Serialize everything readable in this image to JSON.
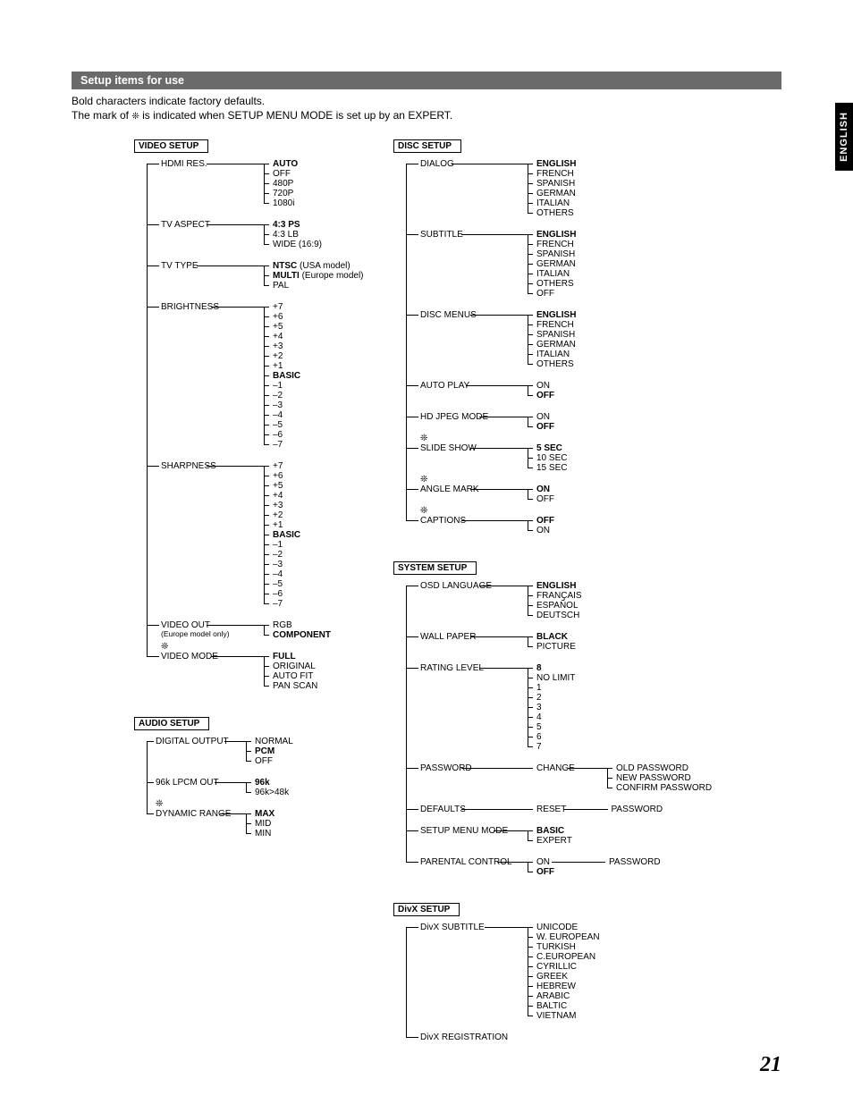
{
  "side_tab": "ENGLISH",
  "page_number": "21",
  "header": "Setup items for use",
  "intro_line1": "Bold characters indicate factory defaults.",
  "intro_line2_prefix": "The mark of ",
  "intro_line2_glyph": "❊",
  "intro_line2_suffix": " is indicated when SETUP MENU MODE is set up by an EXPERT.",
  "expert_glyph": "❊",
  "video_setup": {
    "title": "VIDEO SETUP",
    "hdmi_res": {
      "label": "HDMI RES.",
      "opts": [
        "AUTO",
        "OFF",
        "480P",
        "720P",
        "1080i"
      ],
      "bold": [
        0
      ]
    },
    "tv_aspect": {
      "label": "TV ASPECT",
      "opts": [
        "4:3 PS",
        "4:3 LB",
        "WIDE (16:9)"
      ],
      "bold": [
        0
      ]
    },
    "tv_type": {
      "label": "TV TYPE",
      "opts": [
        "NTSC",
        "MULTI",
        "PAL"
      ],
      "suffix": [
        " (USA model)",
        " (Europe model)",
        ""
      ],
      "bold": [
        0,
        1
      ]
    },
    "brightness": {
      "label": "BRIGHTNESS",
      "opts": [
        "+7",
        "+6",
        "+5",
        "+4",
        "+3",
        "+2",
        "+1",
        "BASIC",
        "–1",
        "–2",
        "–3",
        "–4",
        "–5",
        "–6",
        "–7"
      ],
      "bold": [
        7
      ]
    },
    "sharpness": {
      "label": "SHARPNESS",
      "opts": [
        "+7",
        "+6",
        "+5",
        "+4",
        "+3",
        "+2",
        "+1",
        "BASIC",
        "–1",
        "–2",
        "–3",
        "–4",
        "–5",
        "–6",
        "–7"
      ],
      "bold": [
        7
      ]
    },
    "video_out": {
      "label": "VIDEO OUT",
      "note": "(Europe model only)",
      "opts": [
        "RGB",
        "COMPONENT"
      ],
      "bold": [
        1
      ]
    },
    "video_mode": {
      "label": "VIDEO MODE",
      "expert": true,
      "opts": [
        "FULL",
        "ORIGINAL",
        "AUTO FIT",
        "PAN SCAN"
      ],
      "bold": [
        0
      ]
    }
  },
  "audio_setup": {
    "title": "AUDIO SETUP",
    "digital_output": {
      "label": "DIGITAL OUTPUT",
      "opts": [
        "NORMAL",
        "PCM",
        "OFF"
      ],
      "bold": [
        1
      ]
    },
    "lpcm_out": {
      "label": "96k LPCM OUT",
      "opts": [
        "96k",
        "96k>48k"
      ],
      "bold": [
        0
      ]
    },
    "dynamic_range": {
      "label": "DYNAMIC RANGE",
      "expert": true,
      "opts": [
        "MAX",
        "MID",
        "MIN"
      ],
      "bold": [
        0
      ]
    }
  },
  "disc_setup": {
    "title": "DISC SETUP",
    "dialog": {
      "label": "DIALOG",
      "opts": [
        "ENGLISH",
        "FRENCH",
        "SPANISH",
        "GERMAN",
        "ITALIAN",
        "OTHERS"
      ],
      "bold": [
        0
      ]
    },
    "subtitle": {
      "label": "SUBTITLE",
      "opts": [
        "ENGLISH",
        "FRENCH",
        "SPANISH",
        "GERMAN",
        "ITALIAN",
        "OTHERS",
        "OFF"
      ],
      "bold": [
        0
      ]
    },
    "disc_menus": {
      "label": "DISC MENUS",
      "opts": [
        "ENGLISH",
        "FRENCH",
        "SPANISH",
        "GERMAN",
        "ITALIAN",
        "OTHERS"
      ],
      "bold": [
        0
      ]
    },
    "auto_play": {
      "label": "AUTO PLAY",
      "opts": [
        "ON",
        "OFF"
      ],
      "bold": [
        1
      ]
    },
    "hd_jpeg": {
      "label": "HD JPEG MODE",
      "opts": [
        "ON",
        "OFF"
      ],
      "bold": [
        1
      ]
    },
    "slide_show": {
      "label": "SLIDE SHOW",
      "expert": true,
      "opts": [
        "5 SEC",
        "10 SEC",
        "15 SEC"
      ],
      "bold": [
        0
      ]
    },
    "angle_mark": {
      "label": "ANGLE MARK",
      "expert": true,
      "opts": [
        "ON",
        "OFF"
      ],
      "bold": [
        0
      ]
    },
    "captions": {
      "label": "CAPTIONS",
      "expert": true,
      "opts": [
        "OFF",
        "ON"
      ],
      "bold": [
        0
      ]
    }
  },
  "system_setup": {
    "title": "SYSTEM SETUP",
    "osd_language": {
      "label": "OSD LANGUAGE",
      "opts": [
        "ENGLISH",
        "FRANÇAIS",
        "ESPAÑOL",
        "DEUTSCH"
      ],
      "bold": [
        0
      ]
    },
    "wall_paper": {
      "label": "WALL PAPER",
      "opts": [
        "BLACK",
        "PICTURE"
      ],
      "bold": [
        0
      ]
    },
    "rating_level": {
      "label": "RATING LEVEL",
      "opts": [
        "8",
        "NO LIMIT",
        "1",
        "2",
        "3",
        "4",
        "5",
        "6",
        "7"
      ],
      "bold": [
        0
      ]
    },
    "password": {
      "label": "PASSWORD",
      "mid": "CHANGE",
      "sub": [
        "OLD PASSWORD",
        "NEW PASSWORD",
        "CONFIRM PASSWORD"
      ]
    },
    "defaults": {
      "label": "DEFAULTS",
      "mid": "RESET",
      "sub_single": "PASSWORD"
    },
    "setup_menu_mode": {
      "label": "SETUP MENU MODE",
      "opts": [
        "BASIC",
        "EXPERT"
      ],
      "bold": [
        0
      ]
    },
    "parental_control": {
      "label": "PARENTAL CONTROL",
      "opts": [
        "ON",
        "OFF"
      ],
      "bold": [
        1
      ],
      "sub_single": "PASSWORD"
    }
  },
  "divx_setup": {
    "title": "DivX SETUP",
    "divx_subtitle": {
      "label": "DivX SUBTITLE",
      "opts": [
        "UNICODE",
        "W. EUROPEAN",
        "TURKISH",
        "C.EUROPEAN",
        "CYRILLIC",
        "GREEK",
        "HEBREW",
        "ARABIC",
        "BALTIC",
        "VIETNAM"
      ]
    },
    "divx_registration": {
      "label": "DivX REGISTRATION"
    }
  }
}
